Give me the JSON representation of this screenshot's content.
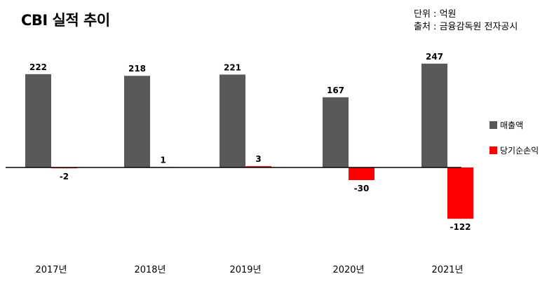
{
  "title": "CBI 실적 추이",
  "source": {
    "unit": "단위 : 억원",
    "origin": "출처 : 금융감독원 전자공시"
  },
  "colors": {
    "revenue": "#595959",
    "net_income": "#ff0000",
    "axis": "#000000"
  },
  "chart_data": {
    "type": "bar",
    "categories": [
      "2017년",
      "2018년",
      "2019년",
      "2020년",
      "2021년"
    ],
    "series": [
      {
        "name": "매출액",
        "values": [
          222,
          218,
          221,
          167,
          247
        ]
      },
      {
        "name": "당기순손익",
        "values": [
          -2,
          1,
          3,
          -30,
          -122
        ]
      }
    ],
    "ylim": [
      -122,
      247
    ],
    "legend": "right",
    "grid": false,
    "data_labels": true
  }
}
